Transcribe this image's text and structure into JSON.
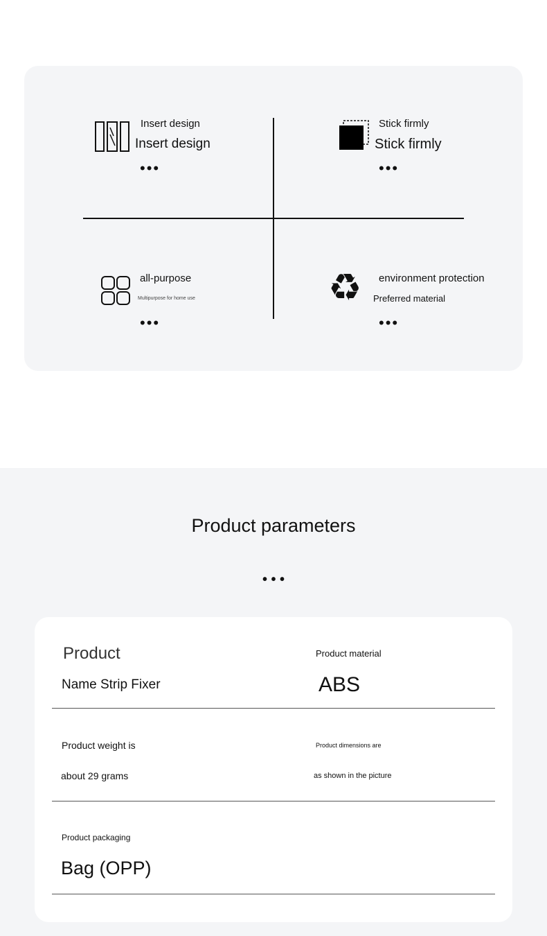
{
  "features": [
    {
      "title": "Insert design",
      "subtitle": "Insert design",
      "icon": "window-panels-icon"
    },
    {
      "title": "Stick firmly",
      "subtitle": "Stick firmly",
      "icon": "sticky-square-icon"
    },
    {
      "title": "all-purpose",
      "subtitle": "Multipurpose for home use",
      "icon": "grid-icon"
    },
    {
      "title": "environment protection",
      "subtitle": "Preferred material",
      "icon": "recycle-icon"
    }
  ],
  "dots": "•••",
  "params": {
    "heading": "Product parameters",
    "dots": "• • •",
    "items": [
      {
        "label": "Product",
        "value": "Name Strip Fixer"
      },
      {
        "label": "Product material",
        "value": "ABS"
      },
      {
        "label": "Product weight is",
        "value": "about 29 grams"
      },
      {
        "label": "Product dimensions are",
        "value": "as shown in the picture"
      },
      {
        "label": "Product packaging",
        "value": "Bag (OPP)"
      }
    ]
  }
}
